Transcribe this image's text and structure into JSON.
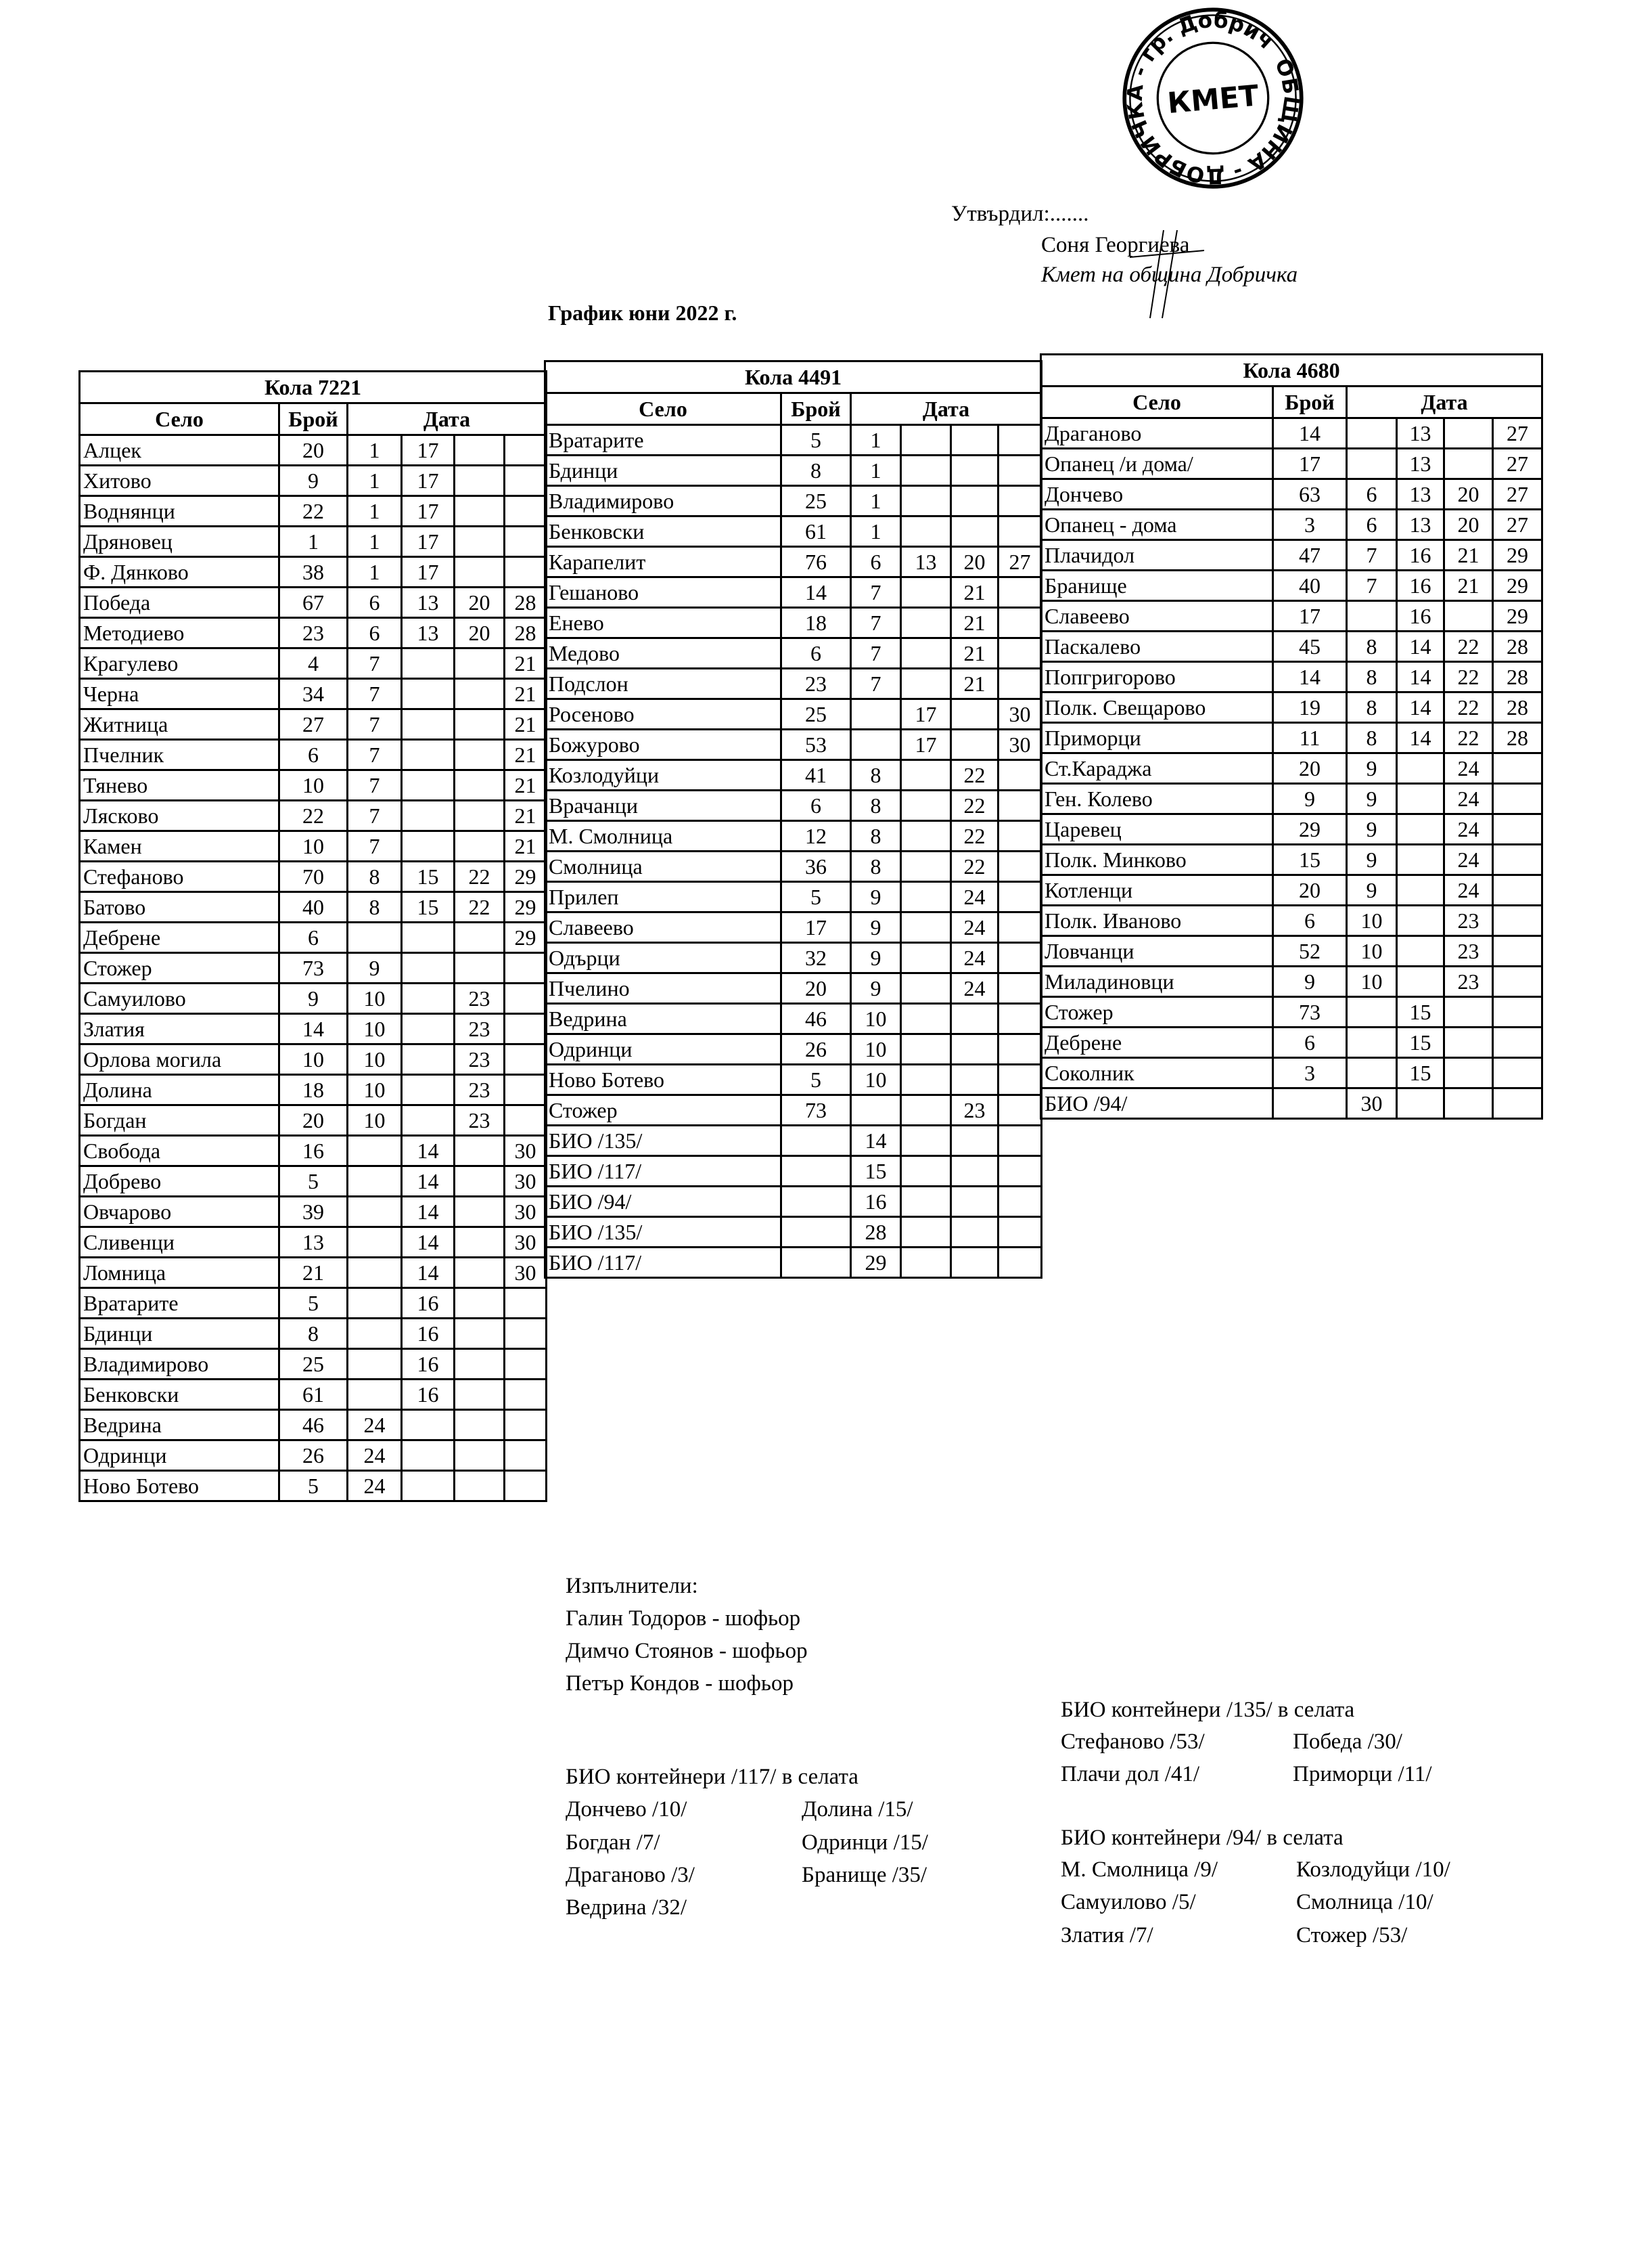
{
  "approval": {
    "approved_label": "Утвърдил:.......",
    "name": "Соня Георгиева",
    "position": "Кмет  на община Добричка"
  },
  "stamp": {
    "ring_text": "ОБЩИНА - ДОБРИЧКА",
    "city_text": "гр. Добрич",
    "center_text": "КМЕТ"
  },
  "document_title": "График юни 2022 г.",
  "headers": {
    "village": "Село",
    "count": "Брой",
    "date": "Дата"
  },
  "tables": [
    {
      "title": "Кола 7221",
      "rows": [
        [
          "Алцек",
          "20",
          "1",
          "17",
          "",
          ""
        ],
        [
          "Хитово",
          "9",
          "1",
          "17",
          "",
          ""
        ],
        [
          "Воднянци",
          "22",
          "1",
          "17",
          "",
          ""
        ],
        [
          "Дряновец",
          "1",
          "1",
          "17",
          "",
          ""
        ],
        [
          "Ф. Дянково",
          "38",
          "1",
          "17",
          "",
          ""
        ],
        [
          "Победа",
          "67",
          "6",
          "13",
          "20",
          "28"
        ],
        [
          "Методиево",
          "23",
          "6",
          "13",
          "20",
          "28"
        ],
        [
          "Крагулево",
          "4",
          "7",
          "",
          "",
          "21"
        ],
        [
          "Черна",
          "34",
          "7",
          "",
          "",
          "21"
        ],
        [
          "Житница",
          "27",
          "7",
          "",
          "",
          "21"
        ],
        [
          "Пчелник",
          "6",
          "7",
          "",
          "",
          "21"
        ],
        [
          "Тянево",
          "10",
          "7",
          "",
          "",
          "21"
        ],
        [
          "Лясково",
          "22",
          "7",
          "",
          "",
          "21"
        ],
        [
          "Камен",
          "10",
          "7",
          "",
          "",
          "21"
        ],
        [
          "Стефаново",
          "70",
          "8",
          "15",
          "22",
          "29"
        ],
        [
          "Батово",
          "40",
          "8",
          "15",
          "22",
          "29"
        ],
        [
          "Дебрене",
          "6",
          "",
          "",
          "",
          "29"
        ],
        [
          "Стожер",
          "73",
          "9",
          "",
          "",
          ""
        ],
        [
          "Самуилово",
          "9",
          "10",
          "",
          "23",
          ""
        ],
        [
          "Златия",
          "14",
          "10",
          "",
          "23",
          ""
        ],
        [
          "Орлова могила",
          "10",
          "10",
          "",
          "23",
          ""
        ],
        [
          "Долина",
          "18",
          "10",
          "",
          "23",
          ""
        ],
        [
          "Богдан",
          "20",
          "10",
          "",
          "23",
          ""
        ],
        [
          "Свобода",
          "16",
          "",
          "14",
          "",
          "30"
        ],
        [
          "Добрево",
          "5",
          "",
          "14",
          "",
          "30"
        ],
        [
          "Овчарово",
          "39",
          "",
          "14",
          "",
          "30"
        ],
        [
          "Сливенци",
          "13",
          "",
          "14",
          "",
          "30"
        ],
        [
          "Ломница",
          "21",
          "",
          "14",
          "",
          "30"
        ],
        [
          "Вратарите",
          "5",
          "",
          "16",
          "",
          ""
        ],
        [
          "Бдинци",
          "8",
          "",
          "16",
          "",
          ""
        ],
        [
          "Владимирово",
          "25",
          "",
          "16",
          "",
          ""
        ],
        [
          "Бенковски",
          "61",
          "",
          "16",
          "",
          ""
        ],
        [
          "Ведрина",
          "46",
          "24",
          "",
          "",
          ""
        ],
        [
          "Одринци",
          "26",
          "24",
          "",
          "",
          ""
        ],
        [
          "Ново Ботево",
          "5",
          "24",
          "",
          "",
          ""
        ]
      ]
    },
    {
      "title": "Кола 4491",
      "rows": [
        [
          "Вратарите",
          "5",
          "1",
          "",
          "",
          ""
        ],
        [
          "Бдинци",
          "8",
          "1",
          "",
          "",
          ""
        ],
        [
          "Владимирово",
          "25",
          "1",
          "",
          "",
          ""
        ],
        [
          "Бенковски",
          "61",
          "1",
          "",
          "",
          ""
        ],
        [
          "Карапелит",
          "76",
          "6",
          "13",
          "20",
          "27"
        ],
        [
          "Гешаново",
          "14",
          "7",
          "",
          "21",
          ""
        ],
        [
          "Енево",
          "18",
          "7",
          "",
          "21",
          ""
        ],
        [
          "Медово",
          "6",
          "7",
          "",
          "21",
          ""
        ],
        [
          "Подслон",
          "23",
          "7",
          "",
          "21",
          ""
        ],
        [
          "Росеново",
          "25",
          "",
          "17",
          "",
          "30"
        ],
        [
          "Божурово",
          "53",
          "",
          "17",
          "",
          "30"
        ],
        [
          "Козлодуйци",
          "41",
          "8",
          "",
          "22",
          ""
        ],
        [
          "Врачанци",
          "6",
          "8",
          "",
          "22",
          ""
        ],
        [
          "М. Смолница",
          "12",
          "8",
          "",
          "22",
          ""
        ],
        [
          "Смолница",
          "36",
          "8",
          "",
          "22",
          ""
        ],
        [
          "Прилеп",
          "5",
          "9",
          "",
          "24",
          ""
        ],
        [
          "Славеево",
          "17",
          "9",
          "",
          "24",
          ""
        ],
        [
          "Одърци",
          "32",
          "9",
          "",
          "24",
          ""
        ],
        [
          "Пчелино",
          "20",
          "9",
          "",
          "24",
          ""
        ],
        [
          "Ведрина",
          "46",
          "10",
          "",
          "",
          ""
        ],
        [
          "Одринци",
          "26",
          "10",
          "",
          "",
          ""
        ],
        [
          "Ново Ботево",
          "5",
          "10",
          "",
          "",
          ""
        ],
        [
          "Стожер",
          "73",
          "",
          "",
          "23",
          ""
        ],
        [
          "БИО /135/",
          "",
          "14",
          "",
          "",
          ""
        ],
        [
          "БИО /117/",
          "",
          "15",
          "",
          "",
          ""
        ],
        [
          "БИО /94/",
          "",
          "16",
          "",
          "",
          ""
        ],
        [
          "БИО /135/",
          "",
          "28",
          "",
          "",
          ""
        ],
        [
          "БИО /117/",
          "",
          "29",
          "",
          "",
          ""
        ]
      ]
    },
    {
      "title": "Кола 4680",
      "rows": [
        [
          "Драганово",
          "14",
          "",
          "13",
          "",
          "27"
        ],
        [
          "Опанец /и дома/",
          "17",
          "",
          "13",
          "",
          "27"
        ],
        [
          "Дончево",
          "63",
          "6",
          "13",
          "20",
          "27"
        ],
        [
          "Опанец - дома",
          "3",
          "6",
          "13",
          "20",
          "27"
        ],
        [
          "Плачидол",
          "47",
          "7",
          "16",
          "21",
          "29"
        ],
        [
          "Бранище",
          "40",
          "7",
          "16",
          "21",
          "29"
        ],
        [
          "Славеево",
          "17",
          "",
          "16",
          "",
          "29"
        ],
        [
          "Паскалево",
          "45",
          "8",
          "14",
          "22",
          "28"
        ],
        [
          "Попгригорово",
          "14",
          "8",
          "14",
          "22",
          "28"
        ],
        [
          "Полк. Свещарово",
          "19",
          "8",
          "14",
          "22",
          "28"
        ],
        [
          "Приморци",
          "11",
          "8",
          "14",
          "22",
          "28"
        ],
        [
          "Ст.Караджа",
          "20",
          "9",
          "",
          "24",
          ""
        ],
        [
          "Ген. Колево",
          "9",
          "9",
          "",
          "24",
          ""
        ],
        [
          "Царевец",
          "29",
          "9",
          "",
          "24",
          ""
        ],
        [
          "Полк. Минково",
          "15",
          "9",
          "",
          "24",
          ""
        ],
        [
          "Котленци",
          "20",
          "9",
          "",
          "24",
          ""
        ],
        [
          "Полк. Иваново",
          "6",
          "10",
          "",
          "23",
          ""
        ],
        [
          "Ловчанци",
          "52",
          "10",
          "",
          "23",
          ""
        ],
        [
          "Миладиновци",
          "9",
          "10",
          "",
          "23",
          ""
        ],
        [
          "Стожер",
          "73",
          "",
          "15",
          "",
          ""
        ],
        [
          "Дебрене",
          "6",
          "",
          "15",
          "",
          ""
        ],
        [
          "Соколник",
          "3",
          "",
          "15",
          "",
          ""
        ],
        [
          "БИО /94/",
          "",
          "30",
          "",
          "",
          ""
        ]
      ]
    }
  ],
  "executors": {
    "label": "Изпълнители:",
    "people": [
      "Галин Тодоров - шофьор",
      "Димчо Стоянов - шофьор",
      "Петър Кондов - шофьор"
    ]
  },
  "bio_117": {
    "title": "БИО контейнери /117/ в селата",
    "col1": [
      "Дончево /10/",
      "Богдан /7/",
      "Драганово /3/",
      "Ведрина /32/"
    ],
    "col2": [
      "Долина /15/",
      "Одринци /15/",
      "Бранище /35/"
    ]
  },
  "bio_135": {
    "title": "БИО контейнери /135/ в селата",
    "col1": [
      "Стефаново /53/",
      "Плачи дол /41/"
    ],
    "col2": [
      "Победа /30/",
      "Приморци /11/"
    ]
  },
  "bio_94": {
    "title": "БИО контейнери /94/ в селата",
    "col1": [
      "М. Смолница /9/",
      "Самуилово /5/",
      "Златия /7/"
    ],
    "col2": [
      "Козлодуйци /10/",
      "Смолница /10/",
      "Стожер /53/"
    ]
  }
}
